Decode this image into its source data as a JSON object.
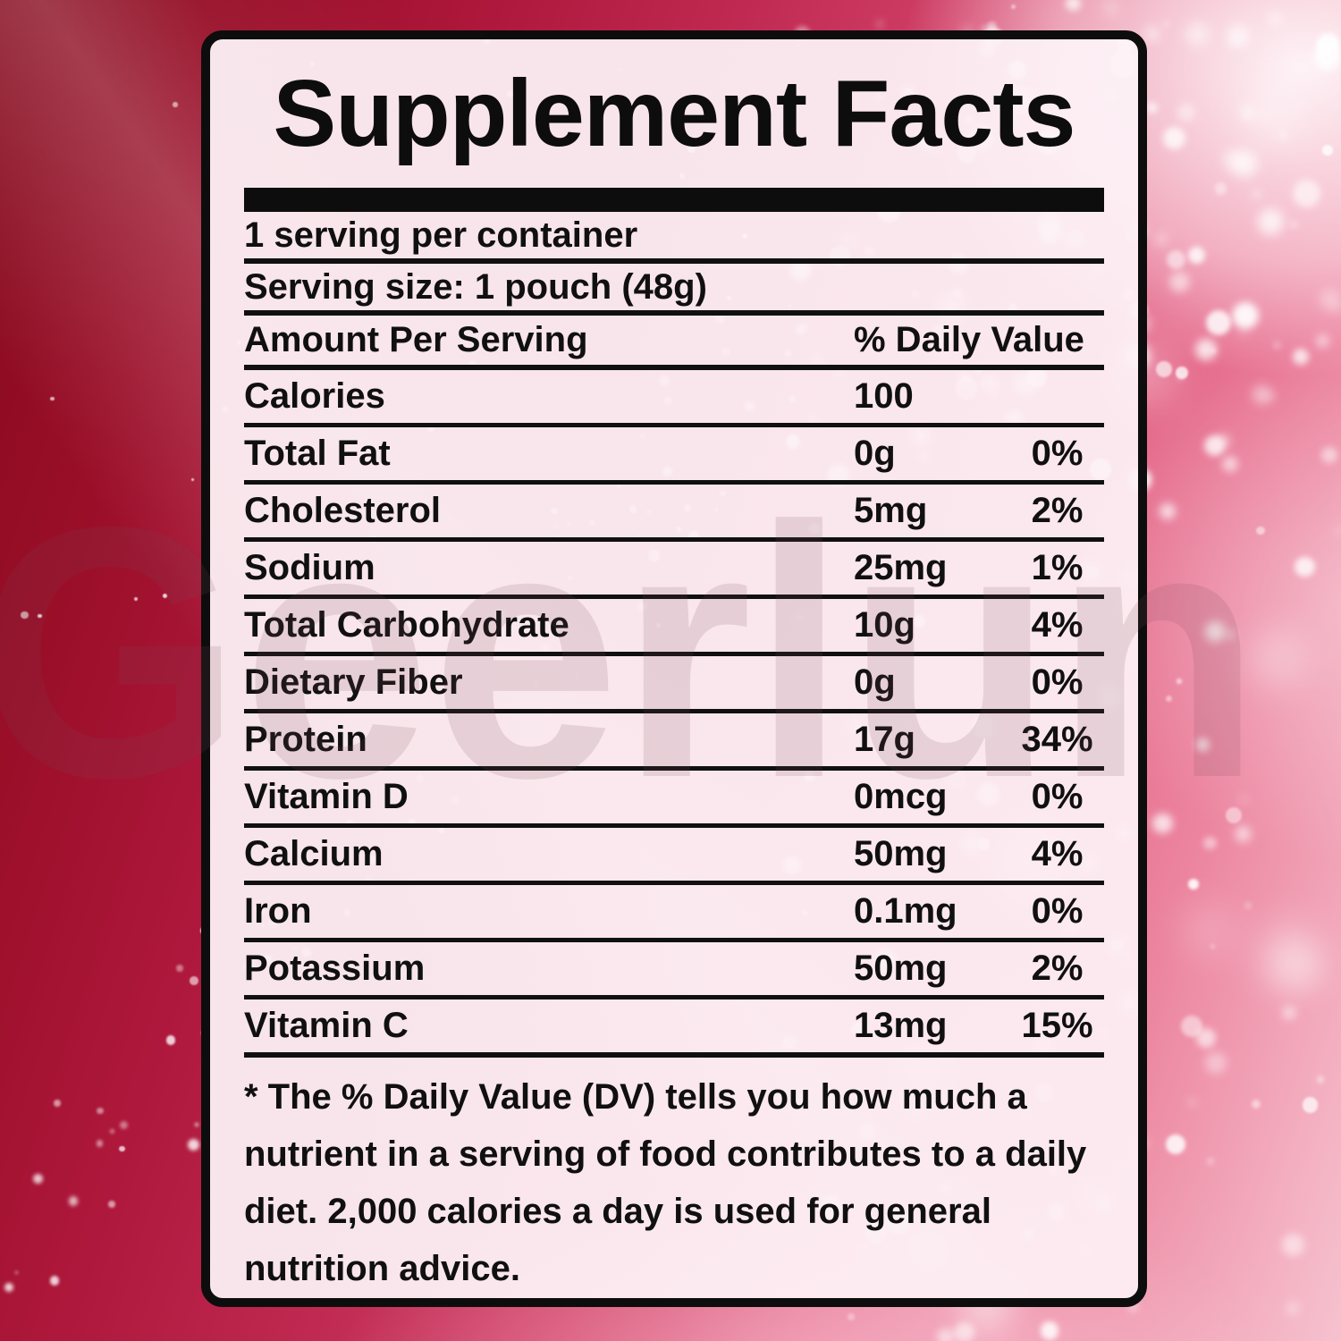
{
  "label": {
    "title": "Supplement Facts",
    "servings_per_container": "1 serving per container",
    "serving_size": "Serving size: 1 pouch (48g)",
    "column_headers": {
      "amount": "Amount Per Serving",
      "daily_value": "% Daily Value"
    },
    "nutrients": [
      {
        "name": "Calories",
        "amount": "100",
        "dv": ""
      },
      {
        "name": "Total Fat",
        "amount": "0g",
        "dv": "0%"
      },
      {
        "name": "Cholesterol",
        "amount": "5mg",
        "dv": "2%"
      },
      {
        "name": "Sodium",
        "amount": "25mg",
        "dv": "1%"
      },
      {
        "name": "Total Carbohydrate",
        "amount": "10g",
        "dv": "4%"
      },
      {
        "name": "Dietary Fiber",
        "amount": "0g",
        "dv": "0%"
      },
      {
        "name": "Protein",
        "amount": "17g",
        "dv": "34%"
      },
      {
        "name": "Vitamin D",
        "amount": "0mcg",
        "dv": "0%"
      },
      {
        "name": "Calcium",
        "amount": "50mg",
        "dv": "4%"
      },
      {
        "name": "Iron",
        "amount": "0.1mg",
        "dv": "0%"
      },
      {
        "name": "Potassium",
        "amount": "50mg",
        "dv": "2%"
      },
      {
        "name": "Vitamin C",
        "amount": "13mg",
        "dv": "15%"
      }
    ],
    "footnote_lines": [
      "* The % Daily Value (DV) tells you how much a",
      "nutrient in a serving of food contributes to a daily",
      "diet. 2,000 calories a day is used for general",
      "nutrition advice."
    ]
  },
  "background": {
    "watermark": "Geerlun",
    "colors": {
      "background_dark_red": "#850A1D",
      "background_rose": "#C52F57",
      "background_light_pink": "#F6C2CF",
      "panel_background": "#FAEFF3",
      "panel_border": "#0D0D0D",
      "text": "#101010",
      "sparkle": "#FFFFFF"
    }
  }
}
